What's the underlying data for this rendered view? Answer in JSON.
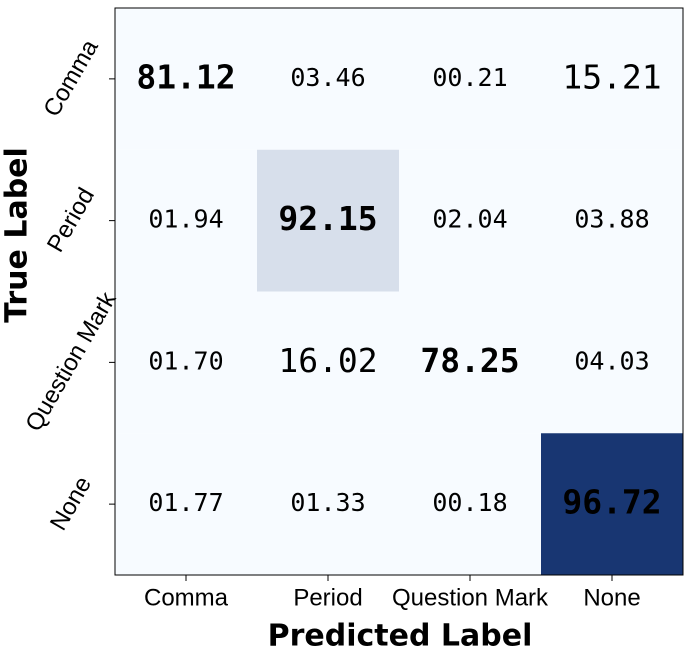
{
  "chart_data": {
    "type": "heatmap",
    "xlabel": "Predicted Label",
    "ylabel": "True Label",
    "x_categories": [
      "Comma",
      "Period",
      "Question Mark",
      "None"
    ],
    "y_categories": [
      "Comma",
      "Period",
      "Question Mark",
      "None"
    ],
    "values": [
      [
        81.12,
        3.46,
        0.21,
        15.21
      ],
      [
        1.94,
        92.15,
        2.04,
        3.88
      ],
      [
        1.7,
        16.02,
        78.25,
        4.03
      ],
      [
        1.77,
        1.33,
        0.18,
        96.72
      ]
    ],
    "value_labels": [
      [
        "81.12",
        "03.46",
        "00.21",
        "15.21"
      ],
      [
        "01.94",
        "92.15",
        "02.04",
        "03.88"
      ],
      [
        "01.70",
        "16.02",
        "78.25",
        "04.03"
      ],
      [
        "01.77",
        "01.33",
        "00.18",
        "96.72"
      ]
    ],
    "colormap": "Blues"
  }
}
